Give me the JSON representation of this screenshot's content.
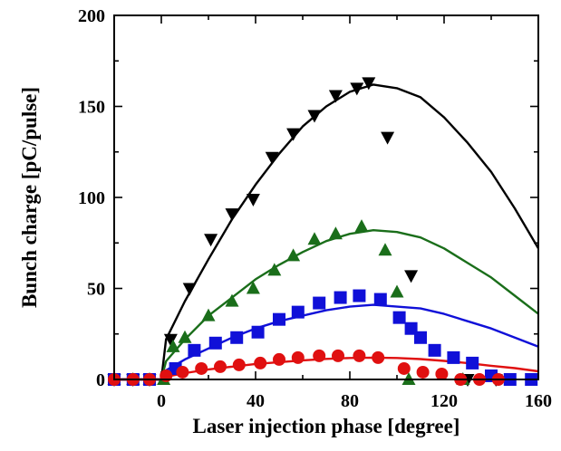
{
  "chart_data": {
    "type": "scatter",
    "title": "",
    "xlabel": "Laser injection phase [degree]",
    "ylabel": "Bunch charge [pC/pulse]",
    "xlim": [
      -20,
      160
    ],
    "ylim": [
      0,
      200
    ],
    "xticks": [
      0,
      40,
      80,
      120,
      160
    ],
    "yticks": [
      0,
      50,
      100,
      150,
      200
    ],
    "xtick_labels": [
      "0",
      "40",
      "80",
      "120",
      "160"
    ],
    "ytick_labels": [
      "0",
      "50",
      "100",
      "150",
      "200"
    ],
    "grid": false,
    "legend": "none",
    "series": [
      {
        "marker": "triangle-down",
        "color": "#000000",
        "x": [
          -20,
          -12,
          -5,
          4,
          12,
          21,
          30,
          39,
          47,
          56,
          65,
          74,
          83,
          88,
          96,
          106,
          130,
          142
        ],
        "y": [
          0,
          0,
          0,
          22,
          50,
          77,
          91,
          99,
          122,
          135,
          145,
          156,
          160,
          163,
          133,
          57,
          0,
          0
        ]
      },
      {
        "marker": "triangle-up",
        "color": "#1a6e1a",
        "x": [
          -20,
          -12,
          -5,
          1,
          5,
          10,
          20,
          30,
          39,
          48,
          56,
          65,
          74,
          85,
          95,
          100,
          105,
          128
        ],
        "y": [
          0,
          0,
          0,
          0,
          18,
          23,
          35,
          43,
          50,
          60,
          68,
          77,
          80,
          84,
          71,
          48,
          0,
          0
        ]
      },
      {
        "marker": "square",
        "color": "#1010d8",
        "x": [
          -20,
          -12,
          -5,
          6,
          14,
          23,
          32,
          41,
          50,
          58,
          67,
          76,
          84,
          93,
          101,
          106,
          110,
          116,
          124,
          132,
          140,
          148,
          157
        ],
        "y": [
          0,
          0,
          0,
          6,
          16,
          20,
          23,
          26,
          33,
          37,
          42,
          45,
          46,
          44,
          34,
          28,
          23,
          16,
          12,
          9,
          2,
          0,
          0
        ]
      },
      {
        "marker": "circle",
        "color": "#e01010",
        "x": [
          -20,
          -12,
          -5,
          2,
          9,
          17,
          25,
          33,
          42,
          50,
          58,
          67,
          75,
          84,
          92,
          103,
          111,
          119,
          127,
          135,
          143
        ],
        "y": [
          0,
          0,
          0,
          2,
          4,
          6,
          7,
          8,
          9,
          11,
          12,
          13,
          13,
          13,
          12,
          6,
          4,
          3,
          0,
          0,
          0
        ]
      }
    ],
    "fit_curves": [
      {
        "color": "#000000",
        "x": [
          -20,
          0,
          2,
          10,
          20,
          30,
          40,
          50,
          60,
          70,
          80,
          90,
          100,
          110,
          120,
          130,
          140,
          150,
          160
        ],
        "y": [
          0,
          0,
          22,
          43,
          66,
          88,
          107,
          124,
          139,
          150,
          158,
          162,
          160,
          155,
          144,
          130,
          114,
          94,
          72
        ]
      },
      {
        "color": "#1a6e1a",
        "x": [
          -20,
          0,
          2,
          10,
          20,
          30,
          40,
          50,
          60,
          70,
          80,
          90,
          100,
          110,
          120,
          130,
          140,
          150,
          160
        ],
        "y": [
          0,
          0,
          10,
          22,
          35,
          45,
          55,
          63,
          70,
          76,
          80,
          82,
          81,
          78,
          72,
          64,
          56,
          46,
          36
        ]
      },
      {
        "color": "#1010d8",
        "x": [
          -20,
          0,
          2,
          10,
          20,
          30,
          40,
          50,
          60,
          70,
          80,
          90,
          100,
          110,
          120,
          130,
          140,
          150,
          160
        ],
        "y": [
          0,
          0,
          5,
          11,
          17,
          23,
          28,
          32,
          35,
          38,
          40,
          41,
          40,
          39,
          36,
          32,
          28,
          23,
          18
        ]
      },
      {
        "color": "#e01010",
        "x": [
          -20,
          0,
          2,
          10,
          20,
          30,
          40,
          50,
          60,
          70,
          80,
          90,
          100,
          110,
          120,
          130,
          140,
          150,
          160
        ],
        "y": [
          0,
          0,
          1.5,
          3.5,
          5.5,
          7,
          8.5,
          9.5,
          10.5,
          11.3,
          11.8,
          12,
          11.8,
          11.2,
          10.2,
          9,
          7.5,
          6.2,
          4.5
        ]
      }
    ]
  }
}
